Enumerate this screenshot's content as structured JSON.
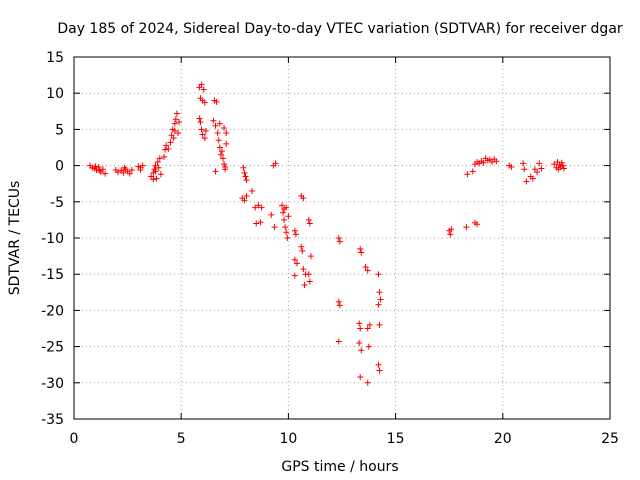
{
  "chart_data": {
    "type": "scatter",
    "title": "Day 185 of 2024, Sidereal Day-to-day VTEC variation (SDTVAR) for receiver dgar",
    "xlabel": "GPS time / hours",
    "ylabel": "SDTVAR / TECUs",
    "xlim": [
      0,
      25
    ],
    "ylim": [
      -35,
      15
    ],
    "xticks": [
      0,
      5,
      10,
      15,
      20,
      25
    ],
    "yticks": [
      -35,
      -30,
      -25,
      -20,
      -15,
      -10,
      -5,
      0,
      5,
      10,
      15
    ],
    "xtick_labels": [
      "0",
      "5",
      "10",
      "15",
      "20",
      "25"
    ],
    "ytick_labels": [
      "-35",
      "-30",
      "-25",
      "-20",
      "-15",
      "-10",
      "-5",
      "0",
      "5",
      "10",
      "15"
    ],
    "grid": true,
    "marker": "+",
    "series": [
      {
        "name": "SDTVAR",
        "color": "#ff0000",
        "points": [
          [
            0.75,
            0.0
          ],
          [
            0.85,
            -0.3
          ],
          [
            0.95,
            -0.4
          ],
          [
            1.05,
            -0.6
          ],
          [
            1.15,
            -0.2
          ],
          [
            1.25,
            -0.9
          ],
          [
            1.35,
            -0.5
          ],
          [
            1.45,
            -1.1
          ],
          [
            1.0,
            -0.1
          ],
          [
            1.2,
            -0.7
          ],
          [
            1.95,
            -0.6
          ],
          [
            2.05,
            -0.9
          ],
          [
            2.2,
            -0.7
          ],
          [
            2.3,
            -1.0
          ],
          [
            2.4,
            -0.5
          ],
          [
            2.5,
            -0.8
          ],
          [
            2.6,
            -1.1
          ],
          [
            2.7,
            -0.6
          ],
          [
            2.35,
            -0.3
          ],
          [
            3.0,
            -0.1
          ],
          [
            3.1,
            -0.3
          ],
          [
            3.2,
            0.0
          ],
          [
            3.1,
            -0.6
          ],
          [
            3.6,
            -1.5
          ],
          [
            3.7,
            -1.0
          ],
          [
            3.75,
            -0.5
          ],
          [
            3.8,
            0.0
          ],
          [
            3.85,
            -1.8
          ],
          [
            3.9,
            0.5
          ],
          [
            3.95,
            -0.3
          ],
          [
            4.0,
            1.0
          ],
          [
            4.05,
            -1.2
          ],
          [
            3.7,
            -1.9
          ],
          [
            3.8,
            -0.8
          ],
          [
            4.2,
            1.2
          ],
          [
            4.25,
            2.2
          ],
          [
            4.3,
            2.8
          ],
          [
            4.4,
            2.3
          ],
          [
            4.5,
            3.2
          ],
          [
            4.55,
            4.2
          ],
          [
            4.6,
            5.0
          ],
          [
            4.65,
            3.8
          ],
          [
            4.7,
            5.8
          ],
          [
            4.75,
            6.4
          ],
          [
            4.8,
            7.2
          ],
          [
            4.85,
            4.5
          ],
          [
            4.7,
            4.8
          ],
          [
            4.9,
            6.0
          ],
          [
            5.85,
            10.8
          ],
          [
            5.95,
            11.2
          ],
          [
            6.05,
            10.5
          ],
          [
            5.9,
            9.3
          ],
          [
            6.0,
            9.0
          ],
          [
            6.1,
            8.7
          ],
          [
            5.85,
            6.5
          ],
          [
            5.9,
            6.0
          ],
          [
            5.95,
            5.0
          ],
          [
            6.0,
            4.3
          ],
          [
            6.1,
            3.8
          ],
          [
            6.15,
            4.8
          ],
          [
            6.55,
            9.0
          ],
          [
            6.65,
            8.8
          ],
          [
            6.5,
            6.2
          ],
          [
            6.6,
            5.5
          ],
          [
            6.7,
            4.5
          ],
          [
            6.75,
            3.5
          ],
          [
            6.8,
            2.5
          ],
          [
            6.9,
            2.0
          ],
          [
            6.95,
            1.0
          ],
          [
            7.0,
            0.2
          ],
          [
            7.05,
            -0.5
          ],
          [
            7.1,
            3.0
          ],
          [
            6.8,
            5.8
          ],
          [
            7.0,
            5.2
          ],
          [
            7.1,
            4.5
          ],
          [
            6.6,
            -0.8
          ],
          [
            6.85,
            1.5
          ],
          [
            7.05,
            -0.2
          ],
          [
            7.9,
            -0.3
          ],
          [
            7.95,
            -1.0
          ],
          [
            8.0,
            -1.5
          ],
          [
            8.05,
            -2.0
          ],
          [
            7.85,
            -4.5
          ],
          [
            7.95,
            -4.8
          ],
          [
            8.05,
            -4.2
          ],
          [
            8.3,
            -3.5
          ],
          [
            8.45,
            -5.8
          ],
          [
            8.6,
            -5.5
          ],
          [
            8.75,
            -5.8
          ],
          [
            8.5,
            -8.0
          ],
          [
            8.7,
            -7.8
          ],
          [
            9.2,
            -6.8
          ],
          [
            9.35,
            -8.5
          ],
          [
            9.3,
            0.0
          ],
          [
            9.4,
            0.3
          ],
          [
            9.7,
            -5.5
          ],
          [
            9.75,
            -6.5
          ],
          [
            9.8,
            -7.5
          ],
          [
            9.85,
            -8.5
          ],
          [
            9.9,
            -9.2
          ],
          [
            9.95,
            -10.0
          ],
          [
            9.8,
            -6.0
          ],
          [
            9.9,
            -5.8
          ],
          [
            10.0,
            -7.0
          ],
          [
            10.3,
            -9.0
          ],
          [
            10.35,
            -9.5
          ],
          [
            10.3,
            -13.0
          ],
          [
            10.4,
            -13.5
          ],
          [
            10.3,
            -15.2
          ],
          [
            10.6,
            -4.2
          ],
          [
            10.7,
            -4.5
          ],
          [
            10.6,
            -11.2
          ],
          [
            10.65,
            -11.8
          ],
          [
            10.7,
            -14.3
          ],
          [
            10.75,
            -16.5
          ],
          [
            10.8,
            -15.0
          ],
          [
            10.95,
            -7.5
          ],
          [
            11.0,
            -8.0
          ],
          [
            11.05,
            -12.5
          ],
          [
            10.95,
            -15.0
          ],
          [
            11.0,
            -16.0
          ],
          [
            12.35,
            -10.0
          ],
          [
            12.4,
            -10.5
          ],
          [
            12.35,
            -18.8
          ],
          [
            12.4,
            -19.3
          ],
          [
            12.35,
            -24.3
          ],
          [
            13.35,
            -11.5
          ],
          [
            13.4,
            -12.0
          ],
          [
            13.3,
            -21.8
          ],
          [
            13.35,
            -22.5
          ],
          [
            13.3,
            -24.5
          ],
          [
            13.4,
            -25.5
          ],
          [
            13.35,
            -29.2
          ],
          [
            13.6,
            -14.0
          ],
          [
            13.7,
            -14.5
          ],
          [
            13.7,
            -22.5
          ],
          [
            13.8,
            -22.0
          ],
          [
            13.75,
            -25.0
          ],
          [
            13.7,
            -30.0
          ],
          [
            14.2,
            -15.0
          ],
          [
            14.25,
            -17.5
          ],
          [
            14.3,
            -18.5
          ],
          [
            14.2,
            -19.2
          ],
          [
            14.25,
            -22.0
          ],
          [
            14.2,
            -27.5
          ],
          [
            14.25,
            -28.3
          ],
          [
            17.5,
            -9.0
          ],
          [
            17.55,
            -9.5
          ],
          [
            17.6,
            -8.8
          ],
          [
            18.3,
            -8.5
          ],
          [
            18.35,
            -1.2
          ],
          [
            18.6,
            -0.8
          ],
          [
            18.7,
            -7.9
          ],
          [
            18.8,
            -8.1
          ],
          [
            18.7,
            0.2
          ],
          [
            18.8,
            0.5
          ],
          [
            18.9,
            0.3
          ],
          [
            19.0,
            0.6
          ],
          [
            19.1,
            0.4
          ],
          [
            19.2,
            1.0
          ],
          [
            19.3,
            0.7
          ],
          [
            19.4,
            0.8
          ],
          [
            19.5,
            0.5
          ],
          [
            19.6,
            0.9
          ],
          [
            19.7,
            0.6
          ],
          [
            20.3,
            0.0
          ],
          [
            20.4,
            -0.2
          ],
          [
            20.95,
            0.3
          ],
          [
            21.0,
            -0.5
          ],
          [
            21.1,
            -2.2
          ],
          [
            21.3,
            -1.5
          ],
          [
            21.4,
            -1.8
          ],
          [
            21.5,
            -0.5
          ],
          [
            21.6,
            -0.9
          ],
          [
            21.7,
            0.3
          ],
          [
            21.8,
            -0.4
          ],
          [
            22.4,
            0.2
          ],
          [
            22.5,
            -0.3
          ],
          [
            22.55,
            0.5
          ],
          [
            22.6,
            -0.5
          ],
          [
            22.65,
            0.1
          ],
          [
            22.7,
            -0.2
          ],
          [
            22.75,
            0.4
          ],
          [
            22.8,
            0.0
          ],
          [
            22.85,
            -0.4
          ]
        ]
      }
    ]
  }
}
